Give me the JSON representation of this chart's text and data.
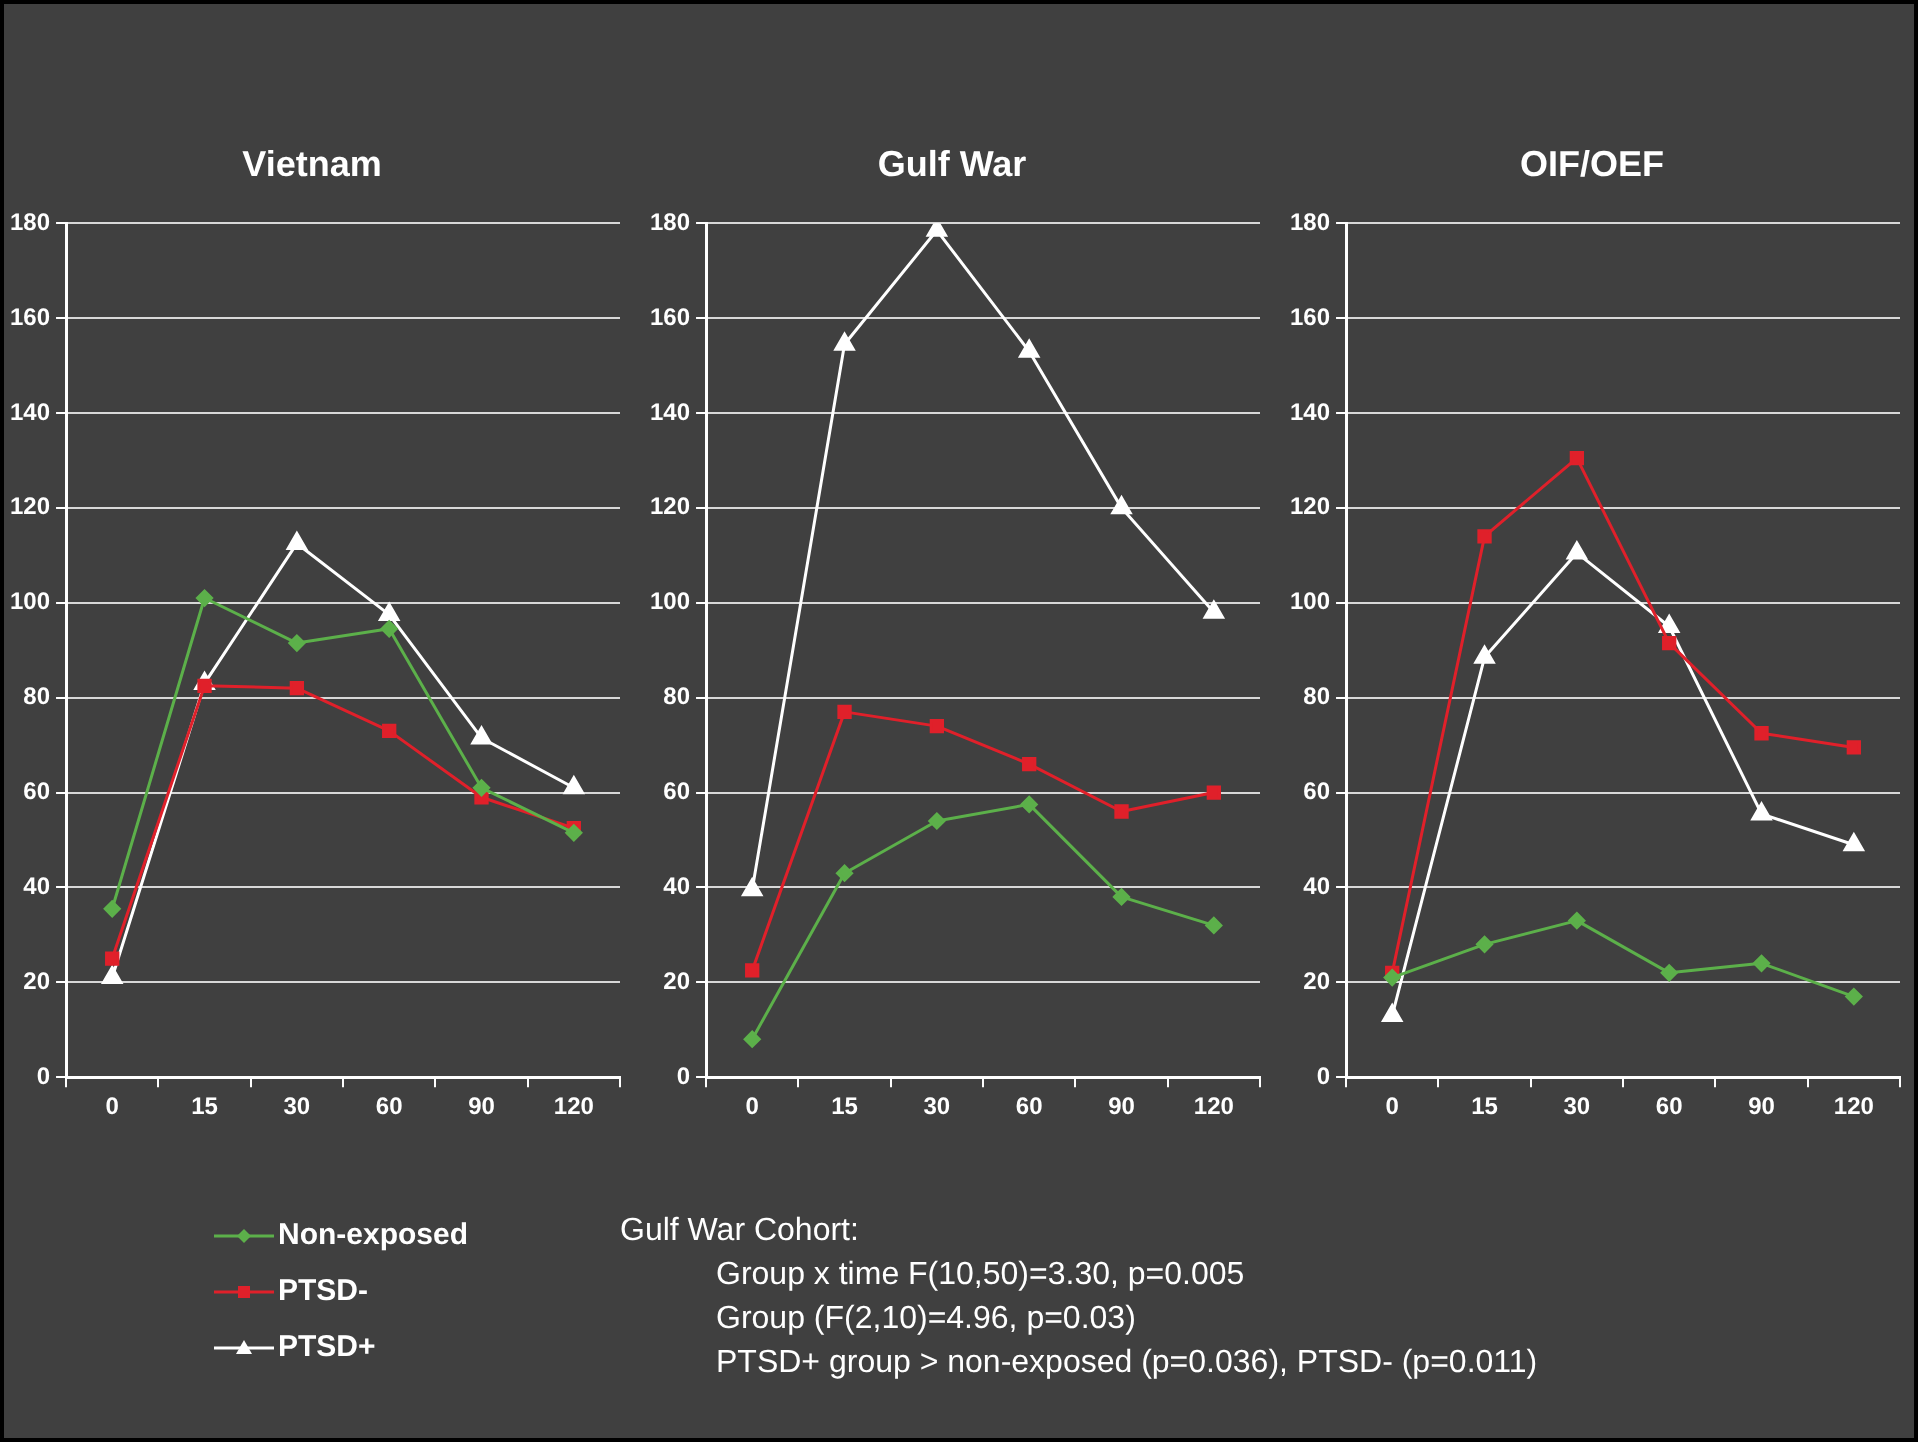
{
  "chart_data": [
    {
      "type": "line",
      "title": "Vietnam",
      "categories": [
        "0",
        "15",
        "30",
        "60",
        "90",
        "120"
      ],
      "ylim": [
        0,
        180
      ],
      "yticks": [
        0,
        20,
        40,
        60,
        80,
        100,
        120,
        140,
        160,
        180
      ],
      "grid": "y",
      "legend": "bottom",
      "series": [
        {
          "name": "Non-exposed",
          "color": "#5cb04a",
          "marker": "diamond",
          "values": [
            35.5,
            101,
            91.5,
            94.5,
            61,
            51.5
          ]
        },
        {
          "name": "PTSD-",
          "color": "#e0202a",
          "marker": "square",
          "values": [
            25,
            82.5,
            82,
            73,
            59,
            52.5
          ]
        },
        {
          "name": "PTSD+",
          "color": "#ffffff",
          "marker": "triangle",
          "values": [
            21,
            83,
            112.5,
            97.5,
            71.5,
            61
          ]
        }
      ]
    },
    {
      "type": "line",
      "title": "Gulf War",
      "categories": [
        "0",
        "15",
        "30",
        "60",
        "90",
        "120"
      ],
      "ylim": [
        0,
        180
      ],
      "yticks": [
        0,
        20,
        40,
        60,
        80,
        100,
        120,
        140,
        160,
        180
      ],
      "grid": "y",
      "annotations": [
        "Gulf War Cohort:",
        "Group x time F(10,50)=3.30, p=0.005",
        "Group (F(2,10)=4.96, p=0.03)",
        "PTSD+ group > non-exposed (p=0.036),  PTSD- (p=0.011)"
      ],
      "series": [
        {
          "color": "#5cb04a",
          "marker": "diamond",
          "values": [
            8,
            43,
            54,
            57.5,
            38,
            32
          ]
        },
        {
          "color": "#e0202a",
          "marker": "square",
          "values": [
            22.5,
            77,
            74,
            66,
            56,
            60
          ]
        },
        {
          "color": "#ffffff",
          "marker": "triangle",
          "values": [
            39.5,
            154.5,
            178.5,
            153,
            120,
            98
          ]
        }
      ]
    },
    {
      "type": "line",
      "title": "OIF/OEF",
      "categories": [
        "0",
        "15",
        "30",
        "60",
        "90",
        "120"
      ],
      "ylim": [
        0,
        180
      ],
      "yticks": [
        0,
        20,
        40,
        60,
        80,
        100,
        120,
        140,
        160,
        180
      ],
      "grid": "y",
      "series": [
        {
          "color": "#5cb04a",
          "marker": "diamond",
          "values": [
            21,
            28,
            33,
            22,
            24,
            17
          ]
        },
        {
          "color": "#e0202a",
          "marker": "square",
          "values": [
            22,
            114,
            130.5,
            91.5,
            72.5,
            69.5
          ]
        },
        {
          "color": "#ffffff",
          "marker": "triangle",
          "values": [
            13,
            88.5,
            110.5,
            95,
            55.5,
            49
          ]
        }
      ]
    }
  ]
}
